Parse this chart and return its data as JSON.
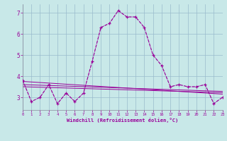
{
  "xlabel": "Windchill (Refroidissement éolien,°C)",
  "background_color": "#c8e8e8",
  "grid_color": "#99bbcc",
  "line_color": "#990099",
  "x_hours": [
    0,
    1,
    2,
    3,
    4,
    5,
    6,
    7,
    8,
    9,
    10,
    11,
    12,
    13,
    14,
    15,
    16,
    17,
    18,
    19,
    20,
    21,
    22,
    23
  ],
  "series1": [
    3.8,
    2.8,
    3.0,
    3.6,
    2.7,
    3.2,
    2.8,
    3.2,
    4.7,
    6.3,
    6.5,
    7.1,
    6.8,
    6.8,
    6.3,
    5.0,
    4.5,
    3.5,
    3.6,
    3.5,
    3.5,
    3.6,
    2.7,
    3.0
  ],
  "trend1_y": [
    3.75,
    3.15
  ],
  "trend2_y": [
    3.6,
    3.28
  ],
  "trend3_y": [
    3.5,
    3.22
  ],
  "ylim": [
    2.4,
    7.4
  ],
  "xlim": [
    0,
    23
  ],
  "yticks": [
    3,
    4,
    5,
    6,
    7
  ],
  "xticks": [
    0,
    1,
    2,
    3,
    4,
    5,
    6,
    7,
    8,
    9,
    10,
    11,
    12,
    13,
    14,
    15,
    16,
    17,
    18,
    19,
    20,
    21,
    22,
    23
  ]
}
